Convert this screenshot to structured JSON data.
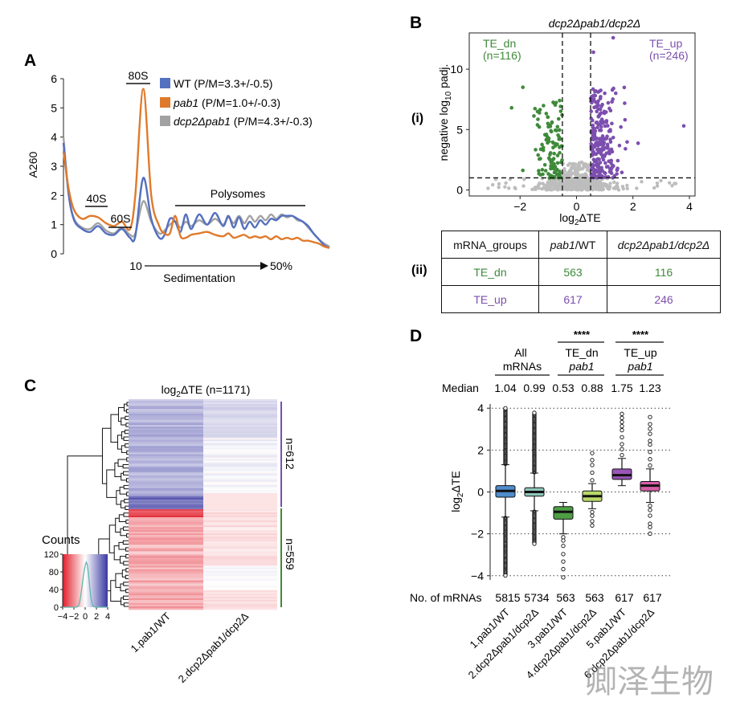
{
  "panels": {
    "a": "A",
    "b": "B",
    "c": "C",
    "d": "D"
  },
  "colors": {
    "wt": "#5470c0",
    "pab1": "#df7a2c",
    "dcp2": "#a2a2a2",
    "te_dn": "#3f8a3a",
    "te_up": "#7c4fae",
    "grey": "#bdbdbd",
    "heat_red": "#e21d2a",
    "heat_blue": "#3a38a1",
    "box1": "#4f8ccc",
    "box2": "#8fc6b8",
    "box3": "#4f9e45",
    "box4": "#b9d86a",
    "box5": "#9a55b8",
    "box6": "#d95da8"
  },
  "panel_a": {
    "ylabel": "A260",
    "yticks": [
      "0",
      "1",
      "2",
      "3",
      "4",
      "5",
      "6"
    ],
    "peaks": {
      "p40": "40S",
      "p60": "60S",
      "p80": "80S",
      "poly": "Polysomes"
    },
    "legend": [
      {
        "name": "WT",
        "stat": " (P/M=3.3+/-0.5)"
      },
      {
        "name": "pab1",
        "stat": " (P/M=1.0+/-0.3)"
      },
      {
        "name": "dcp2Δpab1",
        "stat": " (P/M=4.3+/-0.3)"
      }
    ],
    "x_start": "10",
    "x_end": "50%",
    "xlabel": "Sedimentation",
    "chart_data": {
      "type": "line",
      "title": "",
      "xlabel": "Sedimentation",
      "ylabel": "A260",
      "ylim": [
        0,
        6
      ],
      "series": [
        {
          "name": "WT",
          "x": [
            0,
            2,
            4,
            7,
            10,
            13,
            16,
            19,
            22,
            25,
            27,
            30,
            33,
            36,
            38,
            40,
            42,
            44,
            46,
            48,
            51,
            54,
            57,
            60,
            62,
            64,
            66,
            68,
            70,
            72,
            74,
            76,
            78,
            80,
            82,
            84,
            86,
            88,
            90,
            92,
            94,
            96,
            98,
            100
          ],
          "y": [
            3.8,
            2.0,
            1.15,
            0.85,
            0.75,
            0.95,
            0.7,
            0.65,
            0.85,
            0.55,
            0.6,
            2.6,
            1.2,
            0.55,
            0.65,
            1.2,
            1.1,
            0.75,
            1.35,
            0.85,
            1.35,
            1.0,
            1.4,
            0.95,
            1.3,
            0.9,
            1.25,
            0.85,
            1.1,
            0.9,
            1.15,
            1.0,
            1.2,
            1.15,
            1.3,
            1.3,
            1.3,
            1.2,
            1.1,
            0.95,
            0.7,
            0.5,
            0.3,
            0.2
          ]
        },
        {
          "name": "pab1",
          "x": [
            0,
            2,
            4,
            7,
            10,
            13,
            16,
            19,
            22,
            25,
            27,
            30,
            33,
            36,
            38,
            40,
            42,
            44,
            46,
            48,
            51,
            54,
            57,
            60,
            62,
            64,
            66,
            68,
            70,
            72,
            74,
            76,
            78,
            80,
            82,
            84,
            86,
            88,
            90,
            92,
            94,
            96,
            98,
            100
          ],
          "y": [
            3.5,
            2.2,
            1.5,
            1.2,
            1.3,
            1.25,
            1.05,
            0.95,
            1.1,
            0.85,
            2.0,
            5.65,
            2.0,
            0.95,
            0.7,
            0.7,
            1.3,
            0.6,
            0.55,
            0.65,
            0.7,
            0.75,
            0.65,
            0.6,
            0.7,
            0.55,
            0.6,
            0.65,
            0.55,
            0.6,
            0.55,
            0.6,
            0.5,
            0.6,
            0.5,
            0.55,
            0.5,
            0.55,
            0.45,
            0.45,
            0.4,
            0.35,
            0.25,
            0.2
          ]
        },
        {
          "name": "dcp2Δpab1",
          "x": [
            0,
            2,
            4,
            7,
            10,
            13,
            16,
            19,
            22,
            25,
            27,
            30,
            33,
            36,
            38,
            40,
            42,
            44,
            46,
            48,
            51,
            54,
            57,
            60,
            62,
            64,
            66,
            68,
            70,
            72,
            74,
            76,
            78,
            80,
            82,
            84,
            86,
            88,
            90,
            92,
            94,
            96,
            98,
            100
          ],
          "y": [
            4.0,
            2.0,
            1.2,
            0.9,
            0.85,
            1.05,
            0.8,
            0.7,
            0.9,
            0.65,
            0.7,
            1.8,
            1.1,
            0.7,
            0.8,
            1.0,
            1.1,
            0.9,
            1.1,
            0.95,
            1.15,
            1.0,
            1.2,
            1.0,
            1.25,
            1.05,
            1.3,
            1.05,
            1.3,
            1.1,
            1.3,
            1.15,
            1.35,
            1.2,
            1.35,
            1.25,
            1.3,
            1.15,
            1.1,
            0.9,
            0.7,
            0.5,
            0.35,
            0.25
          ]
        }
      ]
    }
  },
  "panel_b": {
    "title": "dcp2Δpab1/dcp2Δ",
    "label_i": "(i)",
    "label_ii": "(ii)",
    "te_dn_label": "TE_dn",
    "te_dn_count": "(n=116)",
    "te_up_label": "TE_up",
    "te_up_count": "(n=246)",
    "ylabel_pre": "negative log",
    "ylabel_sub": "10",
    "ylabel_post": " padj.",
    "xlabel_pre": "log",
    "xlabel_sub": "2",
    "xlabel_post": "ΔTE",
    "xticks": [
      "−2",
      "0",
      "2",
      "4"
    ],
    "yticks": [
      "0",
      "5",
      "10"
    ],
    "chart_data": {
      "type": "scatter",
      "title": "dcp2Δpab1/dcp2Δ",
      "xlabel": "log2ΔTE",
      "ylabel": "negative log10 padj.",
      "xlim": [
        -3.8,
        4.2
      ],
      "ylim": [
        -0.5,
        13
      ],
      "thresholds": {
        "x": [
          -0.5,
          0.5
        ],
        "y": 1.0
      },
      "groups": [
        {
          "name": "TE_dn",
          "n": 116
        },
        {
          "name": "TE_up",
          "n": 246
        },
        {
          "name": "not significant"
        }
      ],
      "outliers": [
        [
          1.3,
          12.6
        ],
        [
          3.8,
          5.3
        ],
        [
          -1.9,
          8.5
        ],
        [
          -2.3,
          6.8
        ],
        [
          0.6,
          11.4
        ],
        [
          1.0,
          8.0
        ]
      ]
    },
    "table": {
      "headers": [
        "mRNA_groups",
        "pab1/WT",
        "dcp2Δpab1/dcp2Δ"
      ],
      "rows": [
        {
          "group": "TE_dn",
          "v1": "563",
          "v2": "116"
        },
        {
          "group": "TE_up",
          "v1": "617",
          "v2": "246"
        }
      ]
    }
  },
  "panel_c": {
    "title_pre": "log",
    "title_sub": "2",
    "title_post": "ΔTE (n=1171)",
    "n_up": "n=612",
    "n_dn": "n=559",
    "col1": "1.pab1/WT",
    "col2": "2.dcp2Δpab1/dcp2Δ",
    "counts_label": "Counts",
    "counts_yticks": [
      "0",
      "40",
      "80",
      "120"
    ],
    "counts_xticks": [
      "−4",
      "−2",
      "0",
      "2",
      "4"
    ],
    "chart_data": {
      "type": "heatmap",
      "title": "log2ΔTE (n=1171)",
      "columns": [
        "1.pab1/WT",
        "2.dcp2Δpab1/dcp2Δ"
      ],
      "clusters": [
        {
          "name": "upper",
          "n": 612
        },
        {
          "name": "lower",
          "n": 559
        }
      ],
      "color_key_range": [
        -4,
        4
      ]
    }
  },
  "panel_d": {
    "groups": {
      "all": "All",
      "all2": "mRNAs",
      "dn": "TE_dn",
      "dn_sub": "pab1",
      "up": "TE_up",
      "up_sub": "pab1",
      "sig_dn": "****",
      "sig_up": "****"
    },
    "median_label": "Median",
    "medians": [
      "1.04",
      "0.99",
      "0.53",
      "0.88",
      "1.75",
      "1.23"
    ],
    "count_label": "No. of mRNAs",
    "counts": [
      "5815",
      "5734",
      "563",
      "563",
      "617",
      "617"
    ],
    "ylabel_pre": "log",
    "ylabel_sub": "2",
    "ylabel_post": "ΔTE",
    "yticks": [
      "−4",
      "−2",
      "0",
      "2",
      "4"
    ],
    "xlabels": [
      "1.pab1/WT",
      "2.dcp2Δpab1/dcp2Δ",
      "3.pab1/WT",
      "4.dcp2Δpab1/dcp2Δ",
      "5.pab1/WT",
      "6.dcp2Δpab1/dcp2Δ"
    ],
    "chart_data": {
      "type": "box",
      "ylabel": "log2ΔTE",
      "ylim": [
        -4.2,
        4.2
      ],
      "categories": [
        "1.pab1/WT",
        "2.dcp2Δpab1/dcp2Δ",
        "3.pab1/WT",
        "4.dcp2Δpab1/dcp2Δ",
        "5.pab1/WT",
        "6.dcp2Δpab1/dcp2Δ"
      ],
      "boxes": [
        {
          "q1": -0.25,
          "median": 0.05,
          "q3": 0.3,
          "wlo": -1.2,
          "whi": 1.3,
          "omin": -4.0,
          "omax": 4.0
        },
        {
          "q1": -0.2,
          "median": 0.0,
          "q3": 0.2,
          "wlo": -0.9,
          "whi": 0.9,
          "omin": -2.5,
          "omax": 3.8
        },
        {
          "q1": -1.3,
          "median": -0.95,
          "q3": -0.7,
          "wlo": -2.0,
          "whi": -0.5,
          "omin": -4.1,
          "omax": -0.5
        },
        {
          "q1": -0.45,
          "median": -0.2,
          "q3": 0.05,
          "wlo": -0.8,
          "whi": 0.4,
          "omin": -1.9,
          "omax": 2.0
        },
        {
          "q1": 0.6,
          "median": 0.8,
          "q3": 1.1,
          "wlo": 0.3,
          "whi": 1.6,
          "omin": 0.3,
          "omax": 3.9
        },
        {
          "q1": 0.05,
          "median": 0.3,
          "q3": 0.5,
          "wlo": -0.5,
          "whi": 1.1,
          "omin": -2.3,
          "omax": 3.8
        }
      ]
    }
  },
  "watermark": "卿泽生物"
}
